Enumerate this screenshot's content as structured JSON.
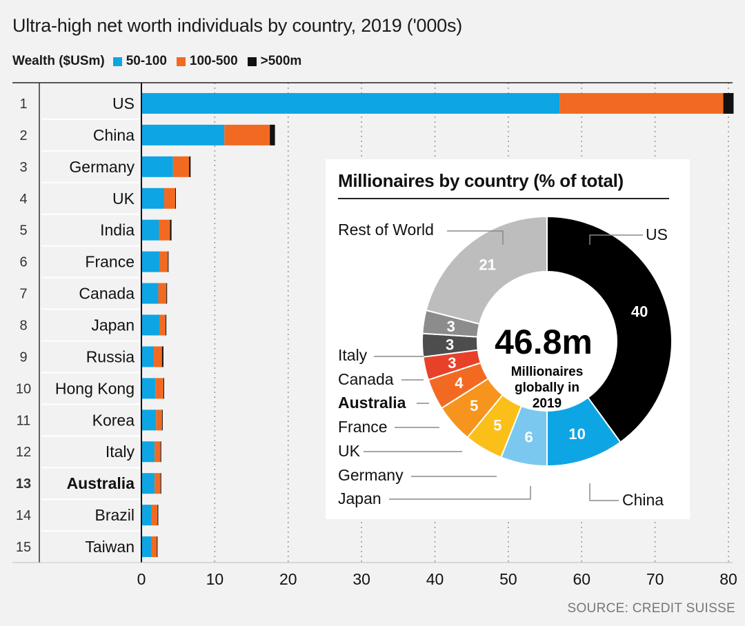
{
  "title": "Ultra-high net worth individuals by country, 2019 ('000s)",
  "legend": {
    "title": "Wealth ($USm)",
    "items": [
      {
        "label": "50-100",
        "color": "#0ea5e4"
      },
      {
        "label": "100-500",
        "color": "#f26a21"
      },
      {
        "label": ">500m",
        "color": "#111111"
      }
    ]
  },
  "source": "SOURCE: CREDIT SUISSE",
  "chart_data": [
    {
      "type": "bar",
      "orientation": "horizontal",
      "stacked": true,
      "title": "Ultra-high net worth individuals by country, 2019 ('000s)",
      "xlim": [
        0,
        80
      ],
      "xticks": [
        0,
        10,
        20,
        30,
        40,
        50,
        60,
        70,
        80
      ],
      "highlight": "Australia",
      "ranks": [
        "1",
        "2",
        "3",
        "4",
        "5",
        "6",
        "7",
        "8",
        "9",
        "10",
        "11",
        "12",
        "13",
        "14",
        "15"
      ],
      "categories": [
        "US",
        "China",
        "Germany",
        "UK",
        "India",
        "France",
        "Canada",
        "Japan",
        "Russia",
        "Hong Kong",
        "Korea",
        "Italy",
        "Australia",
        "Brazil",
        "Taiwan"
      ],
      "series": [
        {
          "name": "50-100",
          "color": "#0ea5e4",
          "values": [
            57.0,
            11.3,
            4.3,
            3.1,
            2.4,
            2.5,
            2.3,
            2.5,
            1.7,
            1.9,
            2.0,
            1.8,
            1.8,
            1.4,
            1.4
          ]
        },
        {
          "name": "100-500",
          "color": "#f26a21",
          "values": [
            22.3,
            6.2,
            2.2,
            1.5,
            1.5,
            1.1,
            1.1,
            0.8,
            1.1,
            1.1,
            0.8,
            0.8,
            0.8,
            0.8,
            0.7
          ]
        },
        {
          "name": ">500m",
          "color": "#111111",
          "values": [
            1.4,
            0.7,
            0.2,
            0.1,
            0.2,
            0.1,
            0.1,
            0.1,
            0.2,
            0.1,
            0.1,
            0.1,
            0.1,
            0.1,
            0.1
          ]
        }
      ]
    },
    {
      "type": "pie",
      "donut": true,
      "title": "Millionaires by country (% of total)",
      "center_value": "46.8m",
      "center_lines": [
        "Millionaires",
        "globally in",
        "2019"
      ],
      "slices": [
        {
          "label": "US",
          "value": 40,
          "color": "#000000"
        },
        {
          "label": "China",
          "value": 10,
          "color": "#0ea5e4"
        },
        {
          "label": "Japan",
          "value": 6,
          "color": "#7ac8ef"
        },
        {
          "label": "Germany",
          "value": 5,
          "color": "#fbbf1a"
        },
        {
          "label": "UK",
          "value": 5,
          "color": "#f7941d"
        },
        {
          "label": "France",
          "value": 4,
          "color": "#f26a21"
        },
        {
          "label": "Australia",
          "value": 3,
          "color": "#e8412a"
        },
        {
          "label": "Canada",
          "value": 3,
          "color": "#4d4d4d"
        },
        {
          "label": "Italy",
          "value": 3,
          "color": "#8c8c8c"
        },
        {
          "label": "Rest of World",
          "value": 21,
          "color": "#bdbdbd"
        }
      ]
    }
  ]
}
